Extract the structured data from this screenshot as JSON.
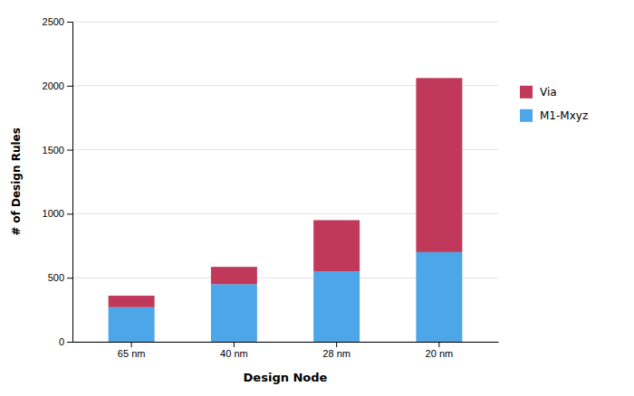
{
  "chart_data": {
    "type": "bar",
    "stacked": true,
    "categories": [
      "65 nm",
      "40 nm",
      "28 nm",
      "20 nm"
    ],
    "series": [
      {
        "name": "M1-Mxyz",
        "color": "#4DA6E8",
        "values": [
          270,
          450,
          550,
          700
        ]
      },
      {
        "name": "Via",
        "color": "#C0395A",
        "values": [
          90,
          135,
          400,
          1360
        ]
      }
    ],
    "xlabel": "Design Node",
    "ylabel": "# of Design Rules",
    "ylim": [
      0,
      2500
    ],
    "yticks": [
      0,
      500,
      1000,
      1500,
      2000,
      2500
    ],
    "grid": true,
    "legend": "right"
  }
}
